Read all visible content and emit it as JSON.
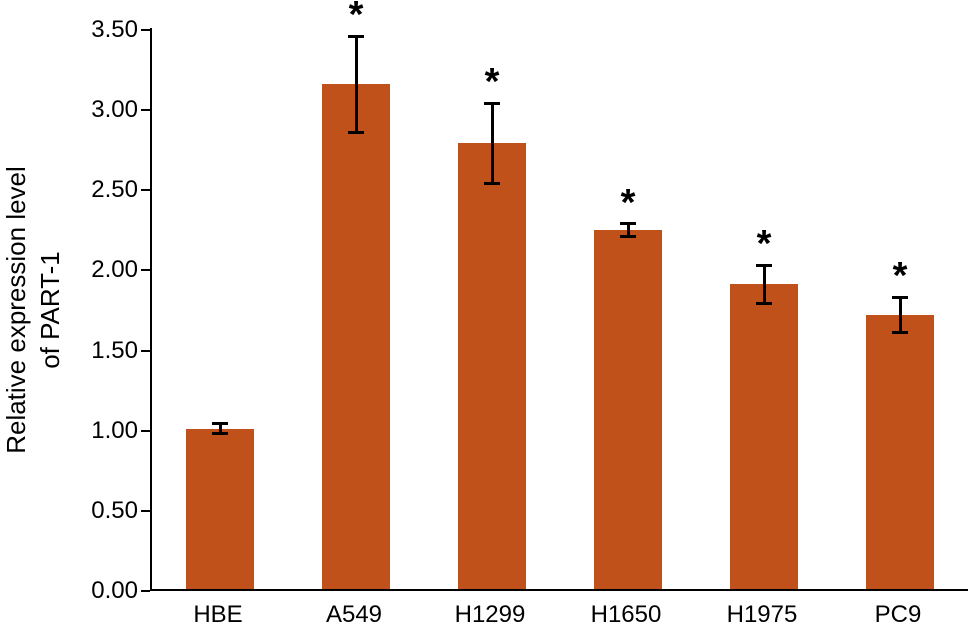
{
  "chart_data": {
    "type": "bar",
    "title": "",
    "categories": [
      "HBE",
      "A549",
      "H1299",
      "H1650",
      "H1975",
      "PC9"
    ],
    "values": [
      1.0,
      3.15,
      2.78,
      2.24,
      1.9,
      1.71
    ],
    "errors": [
      0.03,
      0.3,
      0.25,
      0.04,
      0.12,
      0.11
    ],
    "significance": [
      "",
      "*",
      "*",
      "*",
      "*",
      "*"
    ],
    "xlabel": "",
    "ylabel": "Relative expression level of PART-1",
    "ylabel_lines": [
      "Relative expression level",
      "of PART-1"
    ],
    "ylim": [
      0,
      3.5
    ],
    "yticks": [
      "0.00",
      "0.50",
      "1.00",
      "1.50",
      "2.00",
      "2.50",
      "3.00",
      "3.50"
    ],
    "bar_color": "#c0511b",
    "axis_color": "#000000",
    "grid": "off",
    "legend": "none"
  }
}
